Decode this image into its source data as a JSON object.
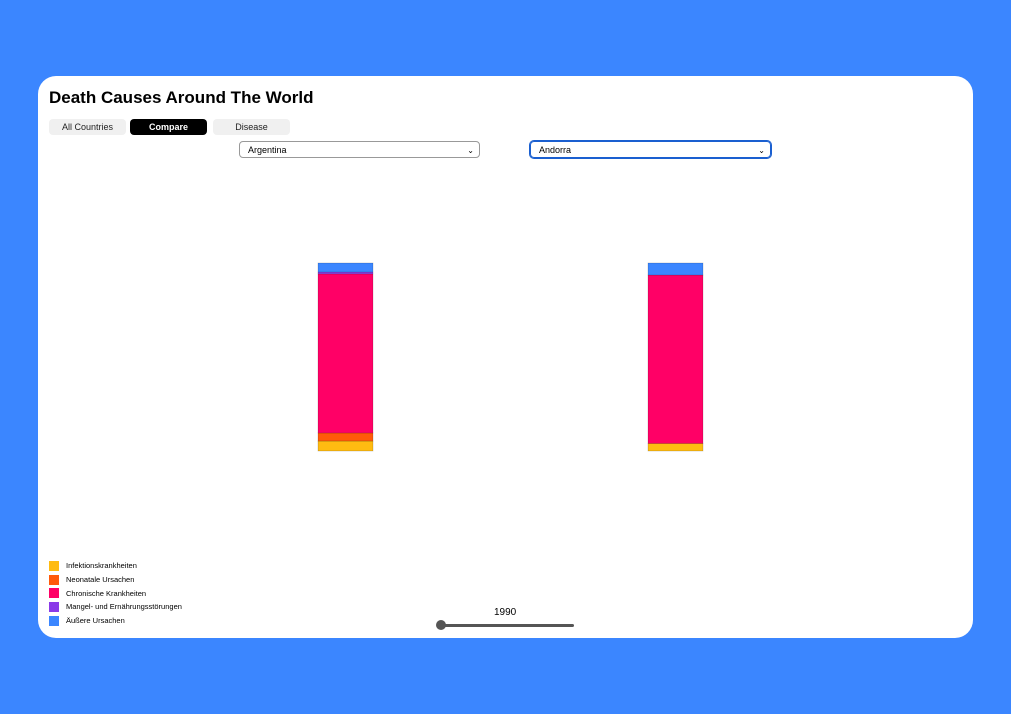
{
  "title": "Death Causes Around The World",
  "tabs": [
    {
      "label": "All Countries",
      "active": false
    },
    {
      "label": "Compare",
      "active": true
    },
    {
      "label": "Disease",
      "active": false
    }
  ],
  "selects": [
    {
      "value": "Argentina"
    },
    {
      "value": "Andorra"
    }
  ],
  "year": "1990",
  "slider": {
    "min": 1990,
    "value": 1990
  },
  "colors": {
    "background": "#3b86ff"
  },
  "chart_data": {
    "type": "bar",
    "stacked": true,
    "categories": [
      "Argentina",
      "Andorra"
    ],
    "series": [
      {
        "name": "Infektionskrankheiten",
        "color": "#ffbb11",
        "values": [
          5.3,
          4.0
        ]
      },
      {
        "name": "Neonatale Ursachen",
        "color": "#ff5a0a",
        "values": [
          4.3,
          0
        ]
      },
      {
        "name": "Chronische Krankheiten",
        "color": "#ff0066",
        "values": [
          84.6,
          89.6
        ]
      },
      {
        "name": "Mangel- und Ernährungsstörungen",
        "color": "#8a3ae8",
        "values": [
          1.0,
          0
        ]
      },
      {
        "name": "Äußere Ursachen",
        "color": "#3b86ff",
        "values": [
          4.8,
          6.4
        ]
      }
    ],
    "unit": "share (%)",
    "legend": "bottom-left",
    "grid": false
  }
}
